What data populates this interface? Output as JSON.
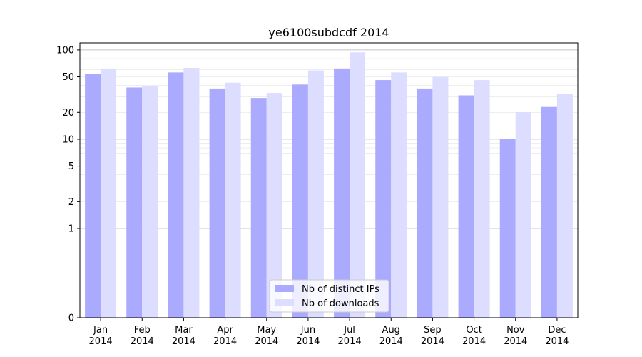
{
  "chart_data": {
    "type": "bar",
    "title": "ye6100subdcdf 2014",
    "xlabel": "",
    "ylabel": "",
    "yscale": "symlog",
    "ylim": [
      0,
      120
    ],
    "yticks": [
      0,
      1,
      2,
      5,
      10,
      20,
      50,
      100
    ],
    "grid": "horizontal",
    "legend": "bottom-center",
    "categories": [
      "Jan\n2014",
      "Feb\n2014",
      "Mar\n2014",
      "Apr\n2014",
      "May\n2014",
      "Jun\n2014",
      "Jul\n2014",
      "Aug\n2014",
      "Sep\n2014",
      "Oct\n2014",
      "Nov\n2014",
      "Dec\n2014"
    ],
    "series": [
      {
        "name": "Nb of distinct IPs",
        "color": "#aaaaff",
        "values": [
          54,
          38,
          56,
          37,
          29,
          41,
          62,
          46,
          37,
          31,
          10,
          23
        ]
      },
      {
        "name": "Nb of downloads",
        "color": "#ddddff",
        "values": [
          62,
          39,
          63,
          43,
          33,
          59,
          94,
          56,
          50,
          46,
          20,
          32
        ]
      }
    ]
  }
}
